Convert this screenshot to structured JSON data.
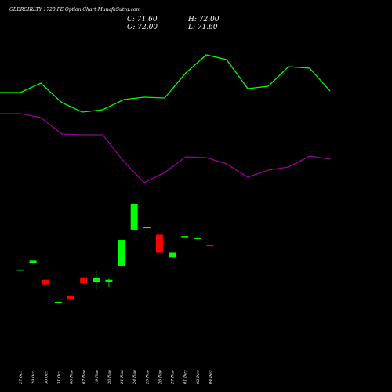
{
  "chart_data": {
    "type": "candlestick",
    "title": "OBEROIRLTY 1720 PE Option Chart MunafaSutra.com",
    "ohlc": {
      "c_label": "C: 71.60",
      "h_label": "H: 72.00",
      "o_label": "O: 72.00",
      "l_label": "L: 71.60"
    },
    "categories": [
      "27 Oct",
      "29 Oct",
      "30 Oct",
      "31 Oct",
      "06 Nov",
      "07 Nov",
      "19 Nov",
      "20 Nov",
      "21 Nov",
      "24 Nov",
      "25 Nov",
      "26 Nov",
      "27 Nov",
      "01 Dec",
      "02 Dec",
      "04 Dec"
    ],
    "candles": [
      {
        "open": 62.5,
        "high": 62.5,
        "low": 62.5,
        "close": 62.5
      },
      {
        "open": 65.0,
        "high": 66.0,
        "low": 65.0,
        "close": 66.0
      },
      {
        "open": 58.6,
        "high": 58.6,
        "low": 56.8,
        "close": 56.8
      },
      {
        "open": 50.0,
        "high": 50.0,
        "low": 50.0,
        "close": 50.0
      },
      {
        "open": 52.5,
        "high": 52.5,
        "low": 50.0,
        "close": 50.8
      },
      {
        "open": 59.5,
        "high": 59.5,
        "low": 56.8,
        "close": 57.2
      },
      {
        "open": 57.6,
        "high": 62.0,
        "low": 55.0,
        "close": 59.3
      },
      {
        "open": 57.6,
        "high": 59.0,
        "low": 55.8,
        "close": 58.6
      },
      {
        "open": 64.0,
        "high": 74.0,
        "low": 64.0,
        "close": 74.0
      },
      {
        "open": 78.0,
        "high": 88.0,
        "low": 78.0,
        "close": 88.0
      },
      {
        "open": 79.0,
        "high": 79.0,
        "low": 79.0,
        "close": 79.0
      },
      {
        "open": 76.0,
        "high": 76.0,
        "low": 69.0,
        "close": 69.0
      },
      {
        "open": 67.2,
        "high": 69.0,
        "low": 66.0,
        "close": 69.0
      },
      {
        "open": 75.5,
        "high": 75.5,
        "low": 75.5,
        "close": 75.5
      },
      {
        "open": 74.8,
        "high": 74.8,
        "low": 74.8,
        "close": 74.8
      },
      {
        "open": 72.0,
        "high": 72.0,
        "low": 71.6,
        "close": 71.6
      }
    ],
    "overlay_series": [
      {
        "color": "#00ff00",
        "values": [
          118,
          118,
          106,
          131,
          143,
          140,
          127,
          124,
          125,
          93,
          70,
          76,
          113,
          110,
          85,
          87,
          116
        ],
        "scale": "pixel-free relative index"
      },
      {
        "color": "#990099",
        "values": [
          145,
          145,
          150,
          171,
          172,
          172,
          206,
          233,
          220,
          200,
          201,
          209,
          226,
          217,
          213,
          199,
          203
        ],
        "scale": "pixel-free relative index"
      }
    ],
    "colors": {
      "up": "#00ff00",
      "down": "#ff0000",
      "background": "#000000",
      "text": "#ffffff"
    },
    "grid": false
  }
}
